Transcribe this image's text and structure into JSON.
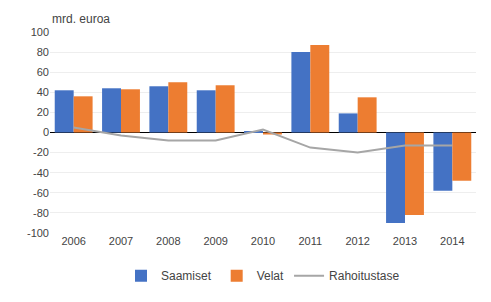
{
  "chart_data": {
    "type": "bar",
    "ylabel": "mrd. euroa",
    "categories": [
      "2006",
      "2007",
      "2008",
      "2009",
      "2010",
      "2011",
      "2012",
      "2013",
      "2014"
    ],
    "series": [
      {
        "name": "Saamiset",
        "color": "#4472c4",
        "values": [
          42,
          44,
          46,
          42,
          1,
          80,
          19,
          -90,
          -58
        ]
      },
      {
        "name": "Velat",
        "color": "#ed7d31",
        "values": [
          36,
          43,
          50,
          47,
          -2,
          87,
          35,
          -82,
          -48
        ]
      },
      {
        "name": "Rahoitustase",
        "type": "line",
        "color": "#a6a6a6",
        "values": [
          5,
          -3,
          -8,
          -8,
          3,
          -15,
          -20,
          -13,
          -13
        ]
      }
    ],
    "ylim": [
      -100,
      100
    ],
    "yticks": [
      -100,
      -80,
      -60,
      -40,
      -20,
      0,
      20,
      40,
      60,
      80,
      100
    ],
    "grid": true,
    "legend": "bottom"
  }
}
